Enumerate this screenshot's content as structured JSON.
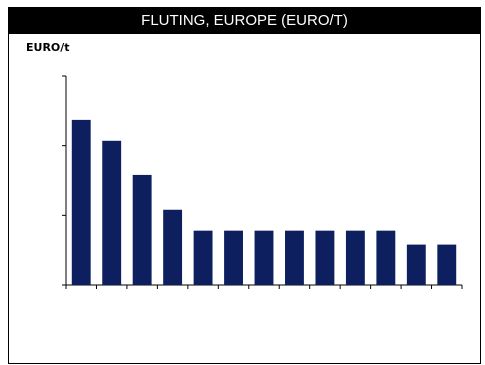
{
  "header": {
    "title": "FLUTING, EUROPE (EURO/T)"
  },
  "chart_data": {
    "type": "bar",
    "title": "FLUTING, EUROPE (EURO/T)",
    "ylabel": "EURO/t",
    "xlabel": "",
    "categories": [
      "",
      "",
      "",
      "",
      "",
      "",
      "",
      "",
      "",
      "",
      "",
      "",
      ""
    ],
    "values": [
      2.37,
      2.07,
      1.58,
      1.08,
      0.78,
      0.78,
      0.78,
      0.78,
      0.78,
      0.78,
      0.78,
      0.58,
      0.58
    ],
    "ylim": [
      0,
      3
    ],
    "yticks": [
      0,
      1,
      2,
      3
    ],
    "grid": false,
    "legend": "none",
    "bar_color": "#0d1f5e",
    "axis_color": "#000000"
  }
}
